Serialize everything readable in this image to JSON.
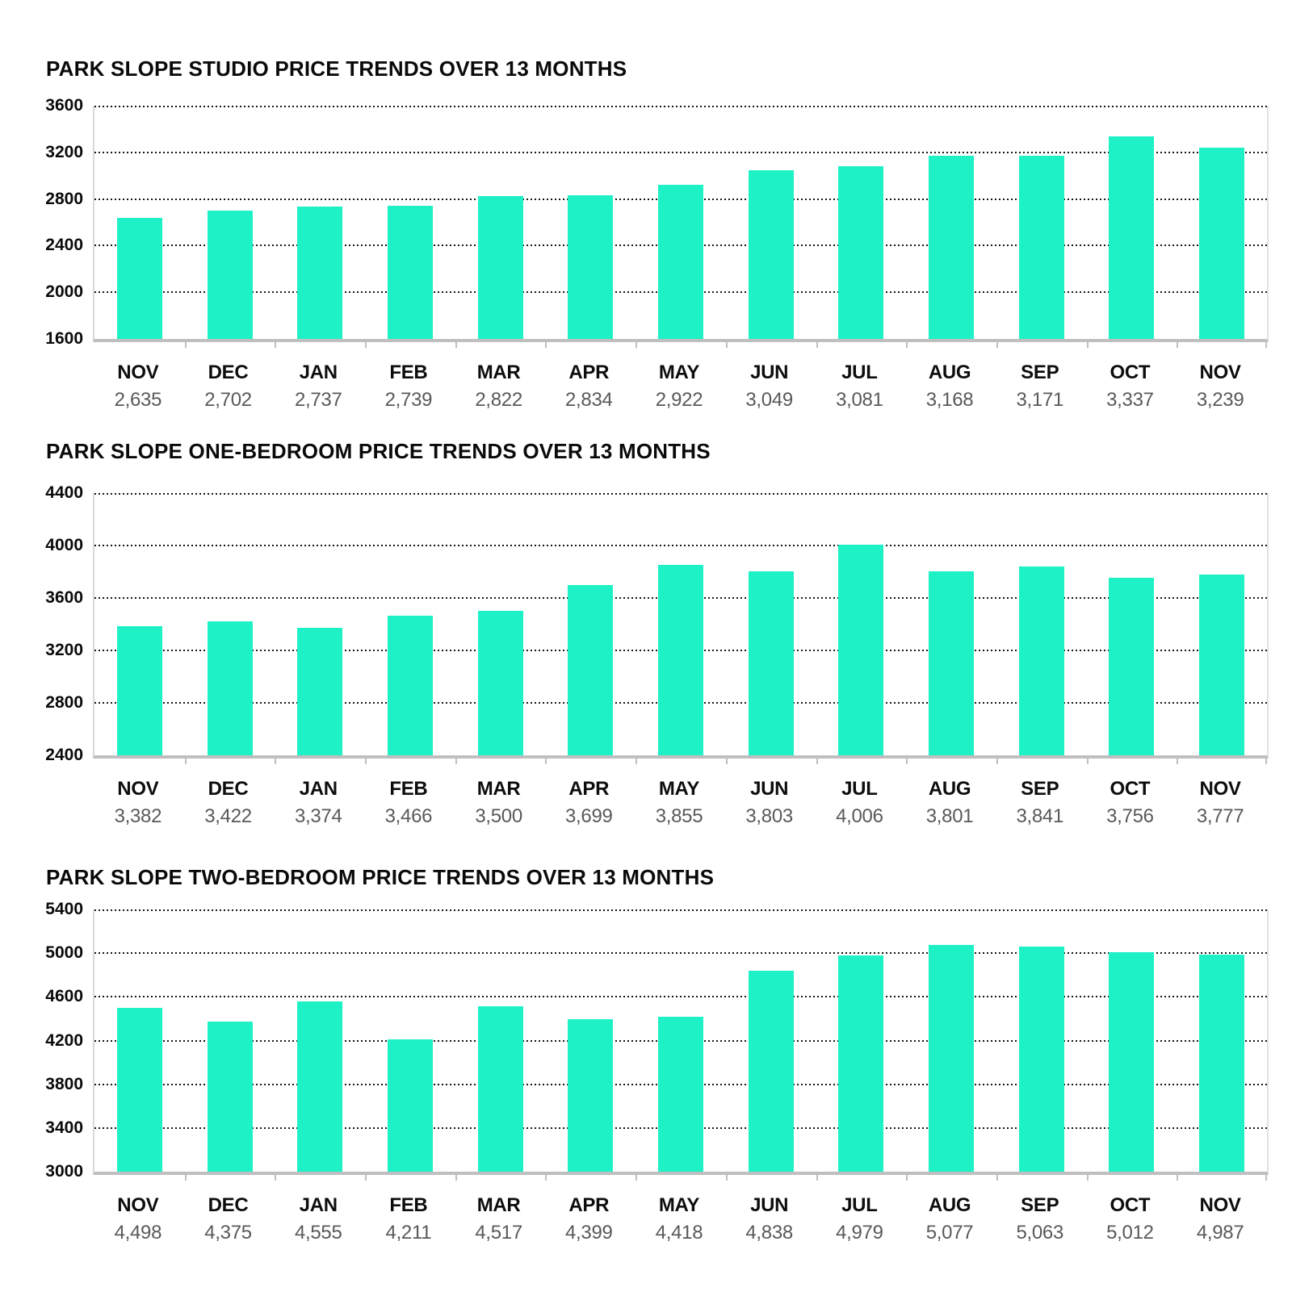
{
  "colors": {
    "bar": "#1ef1c6",
    "grid_dots": "#161616",
    "axis_line": "#bfbfbf",
    "title_text": "#0a0a0a",
    "month_text": "#0d0d0d",
    "value_text": "#595959",
    "background": "#ffffff"
  },
  "chart_data": [
    {
      "type": "bar",
      "title": "PARK SLOPE STUDIO PRICE TRENDS OVER 13 MONTHS",
      "categories": [
        "NOV",
        "DEC",
        "JAN",
        "FEB",
        "MAR",
        "APR",
        "MAY",
        "JUN",
        "JUL",
        "AUG",
        "SEP",
        "OCT",
        "NOV"
      ],
      "values": [
        2635,
        2702,
        2737,
        2739,
        2822,
        2834,
        2922,
        3049,
        3081,
        3168,
        3171,
        3337,
        3239
      ],
      "value_labels": [
        "2,635",
        "2,702",
        "2,737",
        "2,739",
        "2,822",
        "2,834",
        "2,922",
        "3,049",
        "3,081",
        "3,168",
        "3,171",
        "3,337",
        "3,239"
      ],
      "ylim": [
        1600,
        3600
      ],
      "ytick_step": 400,
      "ytick_labels": [
        "1600",
        "2000",
        "2400",
        "2800",
        "3200",
        "3600"
      ],
      "grid": "dotted-horizontal",
      "legend": "none",
      "bar_color": "#1ef1c6"
    },
    {
      "type": "bar",
      "title": "PARK SLOPE ONE-BEDROOM PRICE TRENDS OVER 13 MONTHS",
      "categories": [
        "NOV",
        "DEC",
        "JAN",
        "FEB",
        "MAR",
        "APR",
        "MAY",
        "JUN",
        "JUL",
        "AUG",
        "SEP",
        "OCT",
        "NOV"
      ],
      "values": [
        3382,
        3422,
        3374,
        3466,
        3500,
        3699,
        3855,
        3803,
        4006,
        3801,
        3841,
        3756,
        3777
      ],
      "value_labels": [
        "3,382",
        "3,422",
        "3,374",
        "3,466",
        "3,500",
        "3,699",
        "3,855",
        "3,803",
        "4,006",
        "3,801",
        "3,841",
        "3,756",
        "3,777"
      ],
      "ylim": [
        2400,
        4400
      ],
      "ytick_step": 400,
      "ytick_labels": [
        "2400",
        "2800",
        "3200",
        "3600",
        "4000",
        "4400"
      ],
      "grid": "dotted-horizontal",
      "legend": "none",
      "bar_color": "#1ef1c6"
    },
    {
      "type": "bar",
      "title": "PARK SLOPE TWO-BEDROOM PRICE TRENDS OVER 13 MONTHS",
      "categories": [
        "NOV",
        "DEC",
        "JAN",
        "FEB",
        "MAR",
        "APR",
        "MAY",
        "JUN",
        "JUL",
        "AUG",
        "SEP",
        "OCT",
        "NOV"
      ],
      "values": [
        4498,
        4375,
        4555,
        4211,
        4517,
        4399,
        4418,
        4838,
        4979,
        5077,
        5063,
        5012,
        4987
      ],
      "value_labels": [
        "4,498",
        "4,375",
        "4,555",
        "4,211",
        "4,517",
        "4,399",
        "4,418",
        "4,838",
        "4,979",
        "5,077",
        "5,063",
        "5,012",
        "4,987"
      ],
      "ylim": [
        3000,
        5400
      ],
      "ytick_step": 400,
      "ytick_labels": [
        "3000",
        "3400",
        "3800",
        "4200",
        "4600",
        "5000",
        "5400"
      ],
      "grid": "dotted-horizontal",
      "legend": "none",
      "bar_color": "#1ef1c6"
    }
  ]
}
